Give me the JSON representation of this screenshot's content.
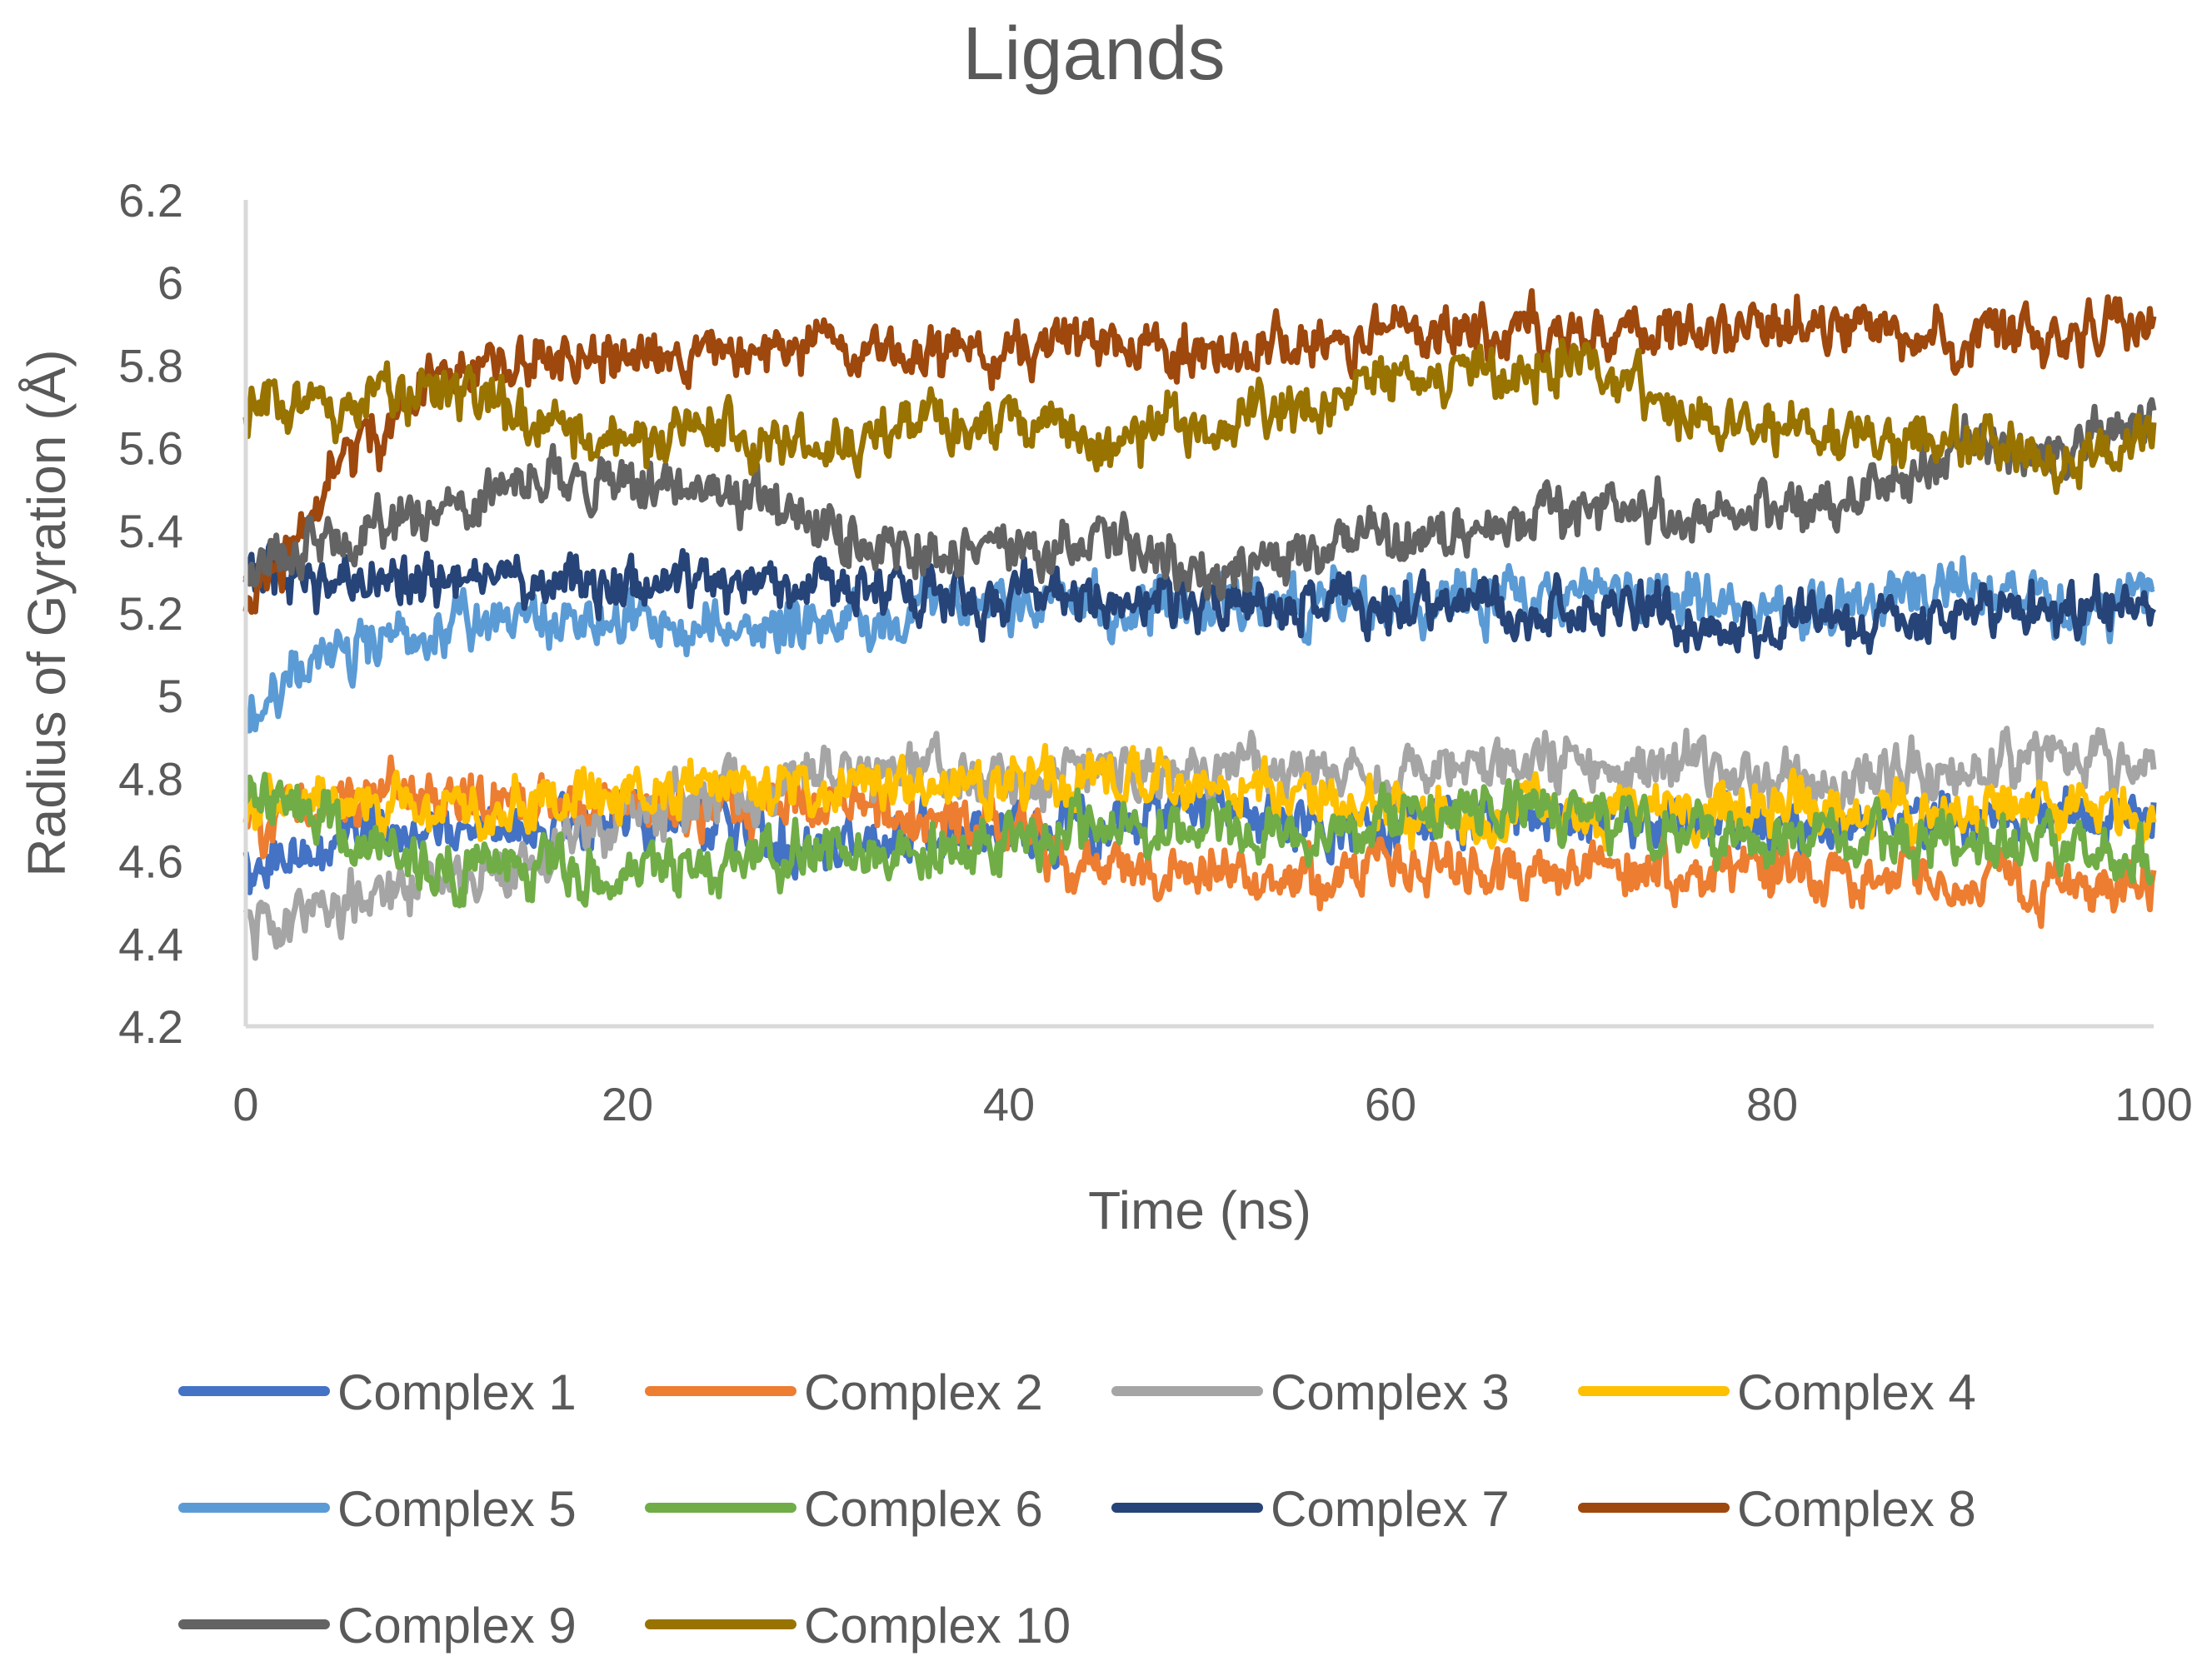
{
  "chart_data": {
    "type": "line",
    "title": "Ligands",
    "xlabel": "Time (ns)",
    "ylabel": "Radius of Gyration (Å)",
    "xlim": [
      0,
      100
    ],
    "ylim": [
      4.2,
      6.2
    ],
    "x_ticks": [
      "0",
      "20",
      "40",
      "60",
      "80",
      "100"
    ],
    "y_ticks": [
      "4.2",
      "4.4",
      "4.6",
      "4.8",
      "5",
      "5.2",
      "5.4",
      "5.6",
      "5.8",
      "6",
      "6.2"
    ],
    "grid": false,
    "legend_position": "bottom",
    "x": [
      0,
      5,
      10,
      15,
      20,
      25,
      30,
      35,
      40,
      45,
      50,
      55,
      60,
      65,
      70,
      75,
      80,
      85,
      90,
      95,
      100
    ],
    "series": [
      {
        "name": "Complex 1",
        "color": "#4472c4",
        "values": [
          4.57,
          4.66,
          4.68,
          4.66,
          4.72,
          4.68,
          4.63,
          4.66,
          4.7,
          4.68,
          4.72,
          4.7,
          4.7,
          4.7,
          4.72,
          4.7,
          4.7,
          4.69,
          4.71,
          4.72,
          4.74
        ]
      },
      {
        "name": "Complex 2",
        "color": "#ed7d31",
        "values": [
          4.68,
          4.76,
          4.76,
          4.74,
          4.73,
          4.72,
          4.74,
          4.7,
          4.68,
          4.58,
          4.58,
          4.56,
          4.58,
          4.57,
          4.59,
          4.57,
          4.58,
          4.56,
          4.56,
          4.54,
          4.55
        ]
      },
      {
        "name": "Complex 3",
        "color": "#a5a5a5",
        "values": [
          4.44,
          4.5,
          4.53,
          4.6,
          4.7,
          4.77,
          4.8,
          4.82,
          4.8,
          4.82,
          4.82,
          4.82,
          4.8,
          4.83,
          4.84,
          4.83,
          4.8,
          4.8,
          4.83,
          4.83,
          4.84
        ]
      },
      {
        "name": "Complex 4",
        "color": "#ffc000",
        "values": [
          4.72,
          4.75,
          4.72,
          4.74,
          4.77,
          4.78,
          4.77,
          4.8,
          4.78,
          4.78,
          4.8,
          4.76,
          4.72,
          4.7,
          4.72,
          4.71,
          4.73,
          4.74,
          4.72,
          4.72,
          4.7
        ]
      },
      {
        "name": "Complex 5",
        "color": "#5b9bd5",
        "values": [
          4.97,
          5.1,
          5.15,
          5.18,
          5.17,
          5.15,
          5.18,
          5.2,
          5.22,
          5.21,
          5.2,
          5.22,
          5.22,
          5.23,
          5.24,
          5.24,
          5.2,
          5.24,
          5.27,
          5.2,
          5.25
        ]
      },
      {
        "name": "Complex 6",
        "color": "#70ad47",
        "values": [
          4.78,
          4.66,
          4.57,
          4.6,
          4.57,
          4.6,
          4.62,
          4.63,
          4.65,
          4.67,
          4.68,
          4.66,
          4.7,
          4.74,
          4.72,
          4.68,
          4.66,
          4.66,
          4.64,
          4.64,
          4.6
        ]
      },
      {
        "name": "Complex 7",
        "color": "#264478",
        "values": [
          5.3,
          5.28,
          5.28,
          5.28,
          5.26,
          5.28,
          5.26,
          5.25,
          5.24,
          5.24,
          5.22,
          5.22,
          5.21,
          5.22,
          5.21,
          5.2,
          5.16,
          5.18,
          5.2,
          5.2,
          5.24
        ]
      },
      {
        "name": "Complex 8",
        "color": "#9e480e",
        "values": [
          5.2,
          5.55,
          5.78,
          5.8,
          5.82,
          5.82,
          5.84,
          5.82,
          5.84,
          5.85,
          5.84,
          5.85,
          5.87,
          5.88,
          5.88,
          5.88,
          5.9,
          5.88,
          5.86,
          5.86,
          5.9
        ]
      },
      {
        "name": "Complex 9",
        "color": "#636363",
        "values": [
          5.3,
          5.4,
          5.45,
          5.55,
          5.52,
          5.48,
          5.42,
          5.35,
          5.35,
          5.38,
          5.3,
          5.33,
          5.38,
          5.4,
          5.45,
          5.42,
          5.45,
          5.48,
          5.6,
          5.6,
          5.65
        ]
      },
      {
        "name": "Complex 10",
        "color": "#997300",
        "values": [
          5.68,
          5.7,
          5.74,
          5.68,
          5.6,
          5.65,
          5.58,
          5.65,
          5.66,
          5.62,
          5.65,
          5.7,
          5.76,
          5.78,
          5.82,
          5.7,
          5.66,
          5.62,
          5.62,
          5.58,
          5.6
        ]
      }
    ]
  }
}
